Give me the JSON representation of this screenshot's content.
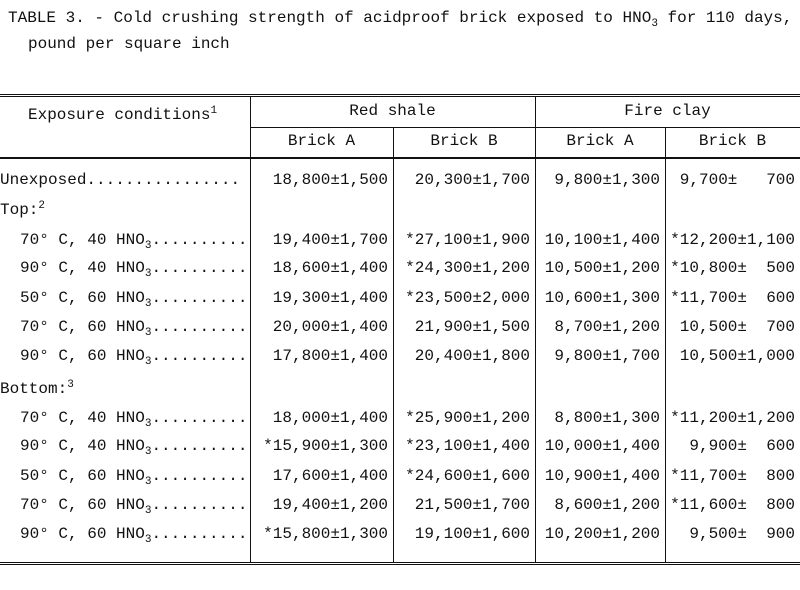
{
  "title": {
    "before": "TABLE 3. - Cold crushing strength of acidproof brick exposed to HNO",
    "sub": "3",
    "after": " for 110 days,",
    "line2": "pound per square inch"
  },
  "table": {
    "header": {
      "label": {
        "text": "Exposure conditions",
        "sup": "1"
      },
      "groups": [
        "Red shale",
        "Fire clay"
      ],
      "columns": [
        "Brick A",
        "Brick B",
        "Brick A",
        "Brick B"
      ]
    },
    "rows": [
      {
        "label": {
          "text": "Unexposed",
          "leader": "................"
        },
        "values": [
          "18,800±1,500",
          "20,300±1,700",
          "9,800±1,300",
          "9,700±   700"
        ]
      },
      {
        "label": {
          "text": "Top:",
          "sup": "2"
        }
      },
      {
        "label": {
          "text": "70° C, 40 HNO",
          "sub": "3",
          "leader": ".........."
        },
        "values": [
          "19,400±1,700",
          "*27,100±1,900",
          "10,100±1,400",
          "*12,200±1,100"
        ]
      },
      {
        "label": {
          "text": "90° C, 40 HNO",
          "sub": "3",
          "leader": ".........."
        },
        "values": [
          "18,600±1,400",
          "*24,300±1,200",
          "10,500±1,200",
          "*10,800±  500"
        ]
      },
      {
        "label": {
          "text": "50° C, 60 HNO",
          "sub": "3",
          "leader": ".........."
        },
        "values": [
          "19,300±1,400",
          "*23,500±2,000",
          "10,600±1,300",
          "*11,700±  600"
        ]
      },
      {
        "label": {
          "text": "70° C, 60 HNO",
          "sub": "3",
          "leader": ".........."
        },
        "values": [
          "20,000±1,400",
          "21,900±1,500",
          "8,700±1,200",
          "10,500±  700"
        ]
      },
      {
        "label": {
          "text": "90° C, 60 HNO",
          "sub": "3",
          "leader": ".........."
        },
        "values": [
          "17,800±1,400",
          "20,400±1,800",
          "9,800±1,700",
          "10,500±1,000"
        ]
      },
      {
        "label": {
          "text": "Bottom:",
          "sup": "3"
        }
      },
      {
        "label": {
          "text": "70° C, 40 HNO",
          "sub": "3",
          "leader": ".........."
        },
        "values": [
          "18,000±1,400",
          "*25,900±1,200",
          "8,800±1,300",
          "*11,200±1,200"
        ]
      },
      {
        "label": {
          "text": "90° C, 40 HNO",
          "sub": "3",
          "leader": ".........."
        },
        "values": [
          "*15,900±1,300",
          "*23,100±1,400",
          "10,000±1,400",
          "9,900±  600"
        ]
      },
      {
        "label": {
          "text": "50° C, 60 HNO",
          "sub": "3",
          "leader": ".........."
        },
        "values": [
          "17,600±1,400",
          "*24,600±1,600",
          "10,900±1,400",
          "*11,700±  800"
        ]
      },
      {
        "label": {
          "text": "70° C, 60 HNO",
          "sub": "3",
          "leader": ".........."
        },
        "values": [
          "19,400±1,200",
          "21,500±1,700",
          "8,600±1,200",
          "*11,600±  800"
        ]
      },
      {
        "label": {
          "text": "90° C, 60 HNO",
          "sub": "3",
          "leader": ".........."
        },
        "values": [
          "*15,800±1,300",
          "19,100±1,600",
          "10,200±1,200",
          "9,500±  900"
        ]
      }
    ]
  }
}
